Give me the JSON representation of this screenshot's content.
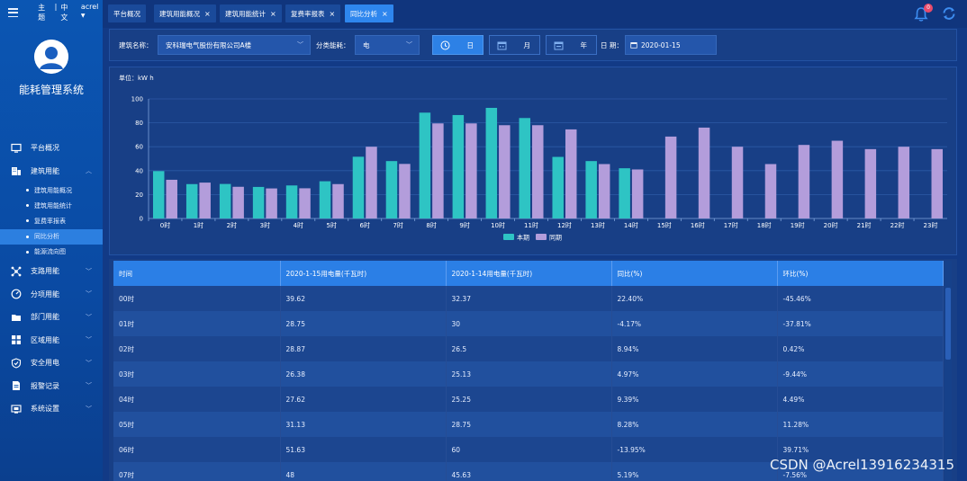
{
  "header": {
    "theme_label": "主题",
    "lang_label": "中文",
    "user": "acrel",
    "notifications": "0"
  },
  "sidebar": {
    "title": "能耗管理系统",
    "menu": [
      {
        "label": "平台概况",
        "icon": "monitor-icon"
      },
      {
        "label": "建筑用能",
        "icon": "building-icon",
        "expanded": true,
        "children": [
          "建筑用能概况",
          "建筑用能统计",
          "复费率报表",
          "同比分析",
          "能源流向图"
        ]
      },
      {
        "label": "支路用能",
        "icon": "branch-icon"
      },
      {
        "label": "分项用能",
        "icon": "gauge-icon"
      },
      {
        "label": "部门用能",
        "icon": "folder-icon"
      },
      {
        "label": "区域用能",
        "icon": "grid-icon"
      },
      {
        "label": "安全用电",
        "icon": "shield-icon"
      },
      {
        "label": "报警记录",
        "icon": "document-icon"
      },
      {
        "label": "系统设置",
        "icon": "settings-icon"
      }
    ],
    "active_child": "同比分析"
  },
  "tabs": [
    {
      "label": "平台概况",
      "closable": false
    },
    {
      "label": "建筑用能概况",
      "closable": true
    },
    {
      "label": "建筑用能统计",
      "closable": true
    },
    {
      "label": "复费率报表",
      "closable": true
    },
    {
      "label": "同比分析",
      "closable": true,
      "active": true
    }
  ],
  "filters": {
    "building_label": "建筑名称：",
    "building_value": "安科瑞电气股份有限公司A楼",
    "category_label": "分类能耗：",
    "category_value": "电",
    "day_label": "日",
    "month_label": "月",
    "year_label": "年",
    "date_label": "日 期：",
    "date_value": "2020-01-15"
  },
  "chart_data": {
    "type": "bar",
    "unit_label": "单位：kW h",
    "categories": [
      "0时",
      "1时",
      "2时",
      "3时",
      "4时",
      "5时",
      "6时",
      "7时",
      "8时",
      "9时",
      "10时",
      "11时",
      "12时",
      "13时",
      "14时",
      "15时",
      "16时",
      "17时",
      "18时",
      "19时",
      "20时",
      "21时",
      "22时",
      "23时"
    ],
    "series": [
      {
        "name": "本期",
        "color": "#2ec4c4",
        "values": [
          39.62,
          28.75,
          28.87,
          26.38,
          27.62,
          31.13,
          51.63,
          48,
          88.5,
          86.5,
          92.5,
          84,
          51.5,
          48,
          42,
          null,
          null,
          null,
          null,
          null,
          null,
          null,
          null,
          null
        ]
      },
      {
        "name": "同期",
        "color": "#b39ddb",
        "values": [
          32.37,
          30,
          26.5,
          25.13,
          25.25,
          28.75,
          60,
          45.63,
          79.5,
          79.5,
          78,
          78,
          74.5,
          45.5,
          41,
          68.5,
          76,
          60,
          45.5,
          61.5,
          65,
          58,
          60,
          58
        ]
      }
    ],
    "ylim": [
      0,
      100
    ],
    "yticks": [
      0,
      20,
      40,
      60,
      80,
      100
    ],
    "legend": "bottom-center",
    "grid": true
  },
  "table": {
    "headers": [
      "时间",
      "2020-1-15用电量(千瓦时)",
      "2020-1-14用电量(千瓦时)",
      "同比(%)",
      "环比(%)"
    ],
    "rows": [
      [
        "00时",
        "39.62",
        "32.37",
        "22.40%",
        "-45.46%"
      ],
      [
        "01时",
        "28.75",
        "30",
        "-4.17%",
        "-37.81%"
      ],
      [
        "02时",
        "28.87",
        "26.5",
        "8.94%",
        "0.42%"
      ],
      [
        "03时",
        "26.38",
        "25.13",
        "4.97%",
        "-9.44%"
      ],
      [
        "04时",
        "27.62",
        "25.25",
        "9.39%",
        "4.49%"
      ],
      [
        "05时",
        "31.13",
        "28.75",
        "8.28%",
        "11.28%"
      ],
      [
        "06时",
        "51.63",
        "60",
        "-13.95%",
        "39.71%"
      ],
      [
        "07时",
        "48",
        "45.63",
        "5.19%",
        "-7.56%"
      ]
    ]
  },
  "watermark": "CSDN @Acrel13916234315"
}
